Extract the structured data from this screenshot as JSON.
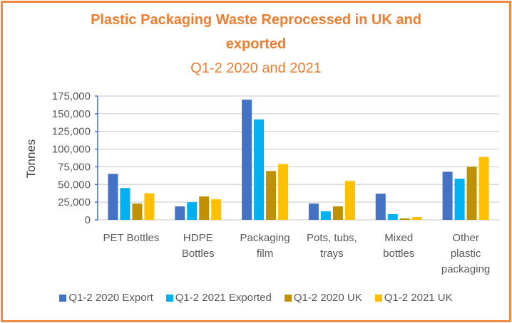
{
  "chart_data": {
    "type": "bar",
    "title": "Plastic Packaging Waste Reprocessed in UK and exported",
    "title_line1": "Plastic Packaging Waste Reprocessed in UK and",
    "title_line2": "exported",
    "subtitle": "Q1-2 2020 and 2021",
    "xlabel": "",
    "ylabel": "Tonnes",
    "ylim": [
      0,
      175000
    ],
    "yticks": [
      0,
      25000,
      50000,
      75000,
      100000,
      125000,
      150000,
      175000
    ],
    "ytick_labels": [
      "0",
      "25,000",
      "50,000",
      "75,000",
      "100,000",
      "125,000",
      "150,000",
      "175,000"
    ],
    "grid": true,
    "legend_position": "bottom",
    "categories": [
      "PET Bottles",
      "HDPE Bottles",
      "Packaging film",
      "Pots, tubs, trays",
      "Mixed bottles",
      "Other plastic packaging"
    ],
    "category_lines": [
      [
        "PET Bottles"
      ],
      [
        "HDPE",
        "Bottles"
      ],
      [
        "Packaging",
        "film"
      ],
      [
        "Pots, tubs,",
        "trays"
      ],
      [
        "Mixed",
        "bottles"
      ],
      [
        "Other",
        "plastic",
        "packaging"
      ]
    ],
    "series": [
      {
        "name": "Q1-2 2020 Export",
        "color": "#4472C4",
        "values": [
          65000,
          19000,
          170000,
          23000,
          37000,
          68000
        ]
      },
      {
        "name": "Q1-2 2021 Exported",
        "color": "#00B0F0",
        "values": [
          45000,
          25000,
          142000,
          12000,
          8000,
          58000
        ]
      },
      {
        "name": "Q1-2 2020 UK",
        "color": "#BF9000",
        "values": [
          23000,
          33000,
          69000,
          19000,
          2000,
          75000
        ]
      },
      {
        "name": "Q1-2 2021 UK",
        "color": "#FFC000",
        "values": [
          37500,
          29000,
          79000,
          55000,
          4000,
          89000
        ]
      }
    ]
  },
  "colors": {
    "title": "#ED7D31",
    "border": "#ED8B45",
    "axis": "#4472C4",
    "grid": "#D9D9D9"
  }
}
